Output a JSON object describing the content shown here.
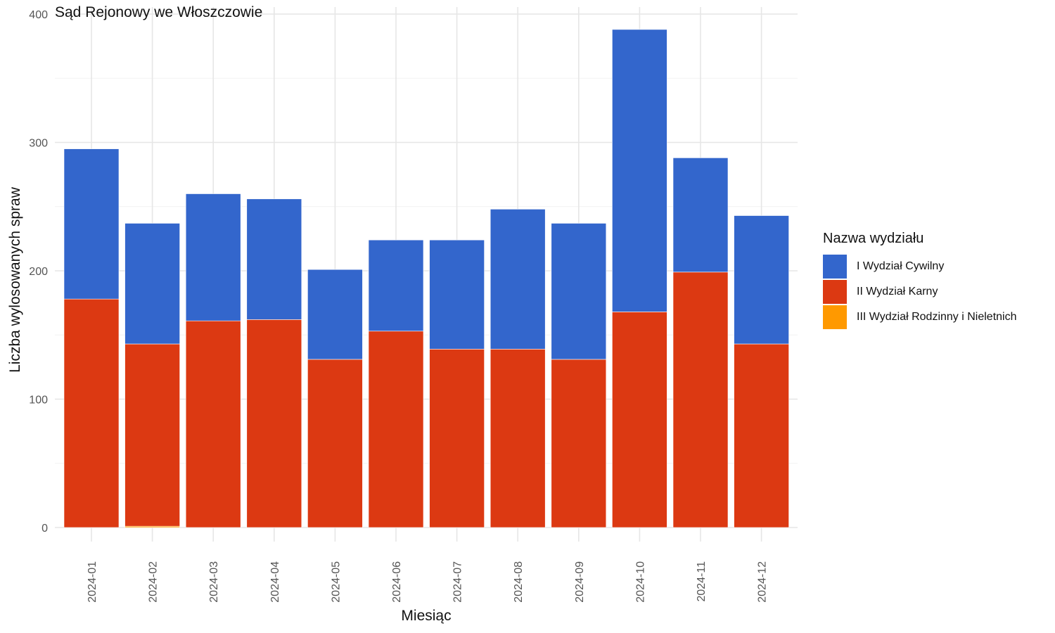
{
  "chart_data": {
    "type": "bar",
    "stacked": true,
    "title": "Sąd Rejonowy we Włoszczowie",
    "xlabel": "Miesiąc",
    "ylabel": "Liczba wylosowanych spraw",
    "ylim": [
      0,
      400
    ],
    "yticks": [
      "0",
      "100",
      "200",
      "300",
      "400"
    ],
    "grid": true,
    "legend_title": "Nazwa wydziału",
    "legend_position": "right",
    "categories": [
      "2024-01",
      "2024-02",
      "2024-03",
      "2024-04",
      "2024-05",
      "2024-06",
      "2024-07",
      "2024-08",
      "2024-09",
      "2024-10",
      "2024-11",
      "2024-12"
    ],
    "series": [
      {
        "name": "I Wydział Cywilny",
        "color": "#3366CC",
        "values": [
          117,
          94,
          99,
          94,
          70,
          71,
          85,
          109,
          106,
          220,
          89,
          100
        ]
      },
      {
        "name": "II Wydział Karny",
        "color": "#DC3912",
        "values": [
          178,
          142,
          161,
          162,
          131,
          153,
          139,
          139,
          131,
          168,
          199,
          143
        ]
      },
      {
        "name": "III Wydział Rodzinny i Nieletnich",
        "color": "#FF9900",
        "values": [
          0,
          1,
          0,
          0,
          0,
          0,
          0,
          0,
          0,
          0,
          0,
          0
        ]
      }
    ]
  }
}
